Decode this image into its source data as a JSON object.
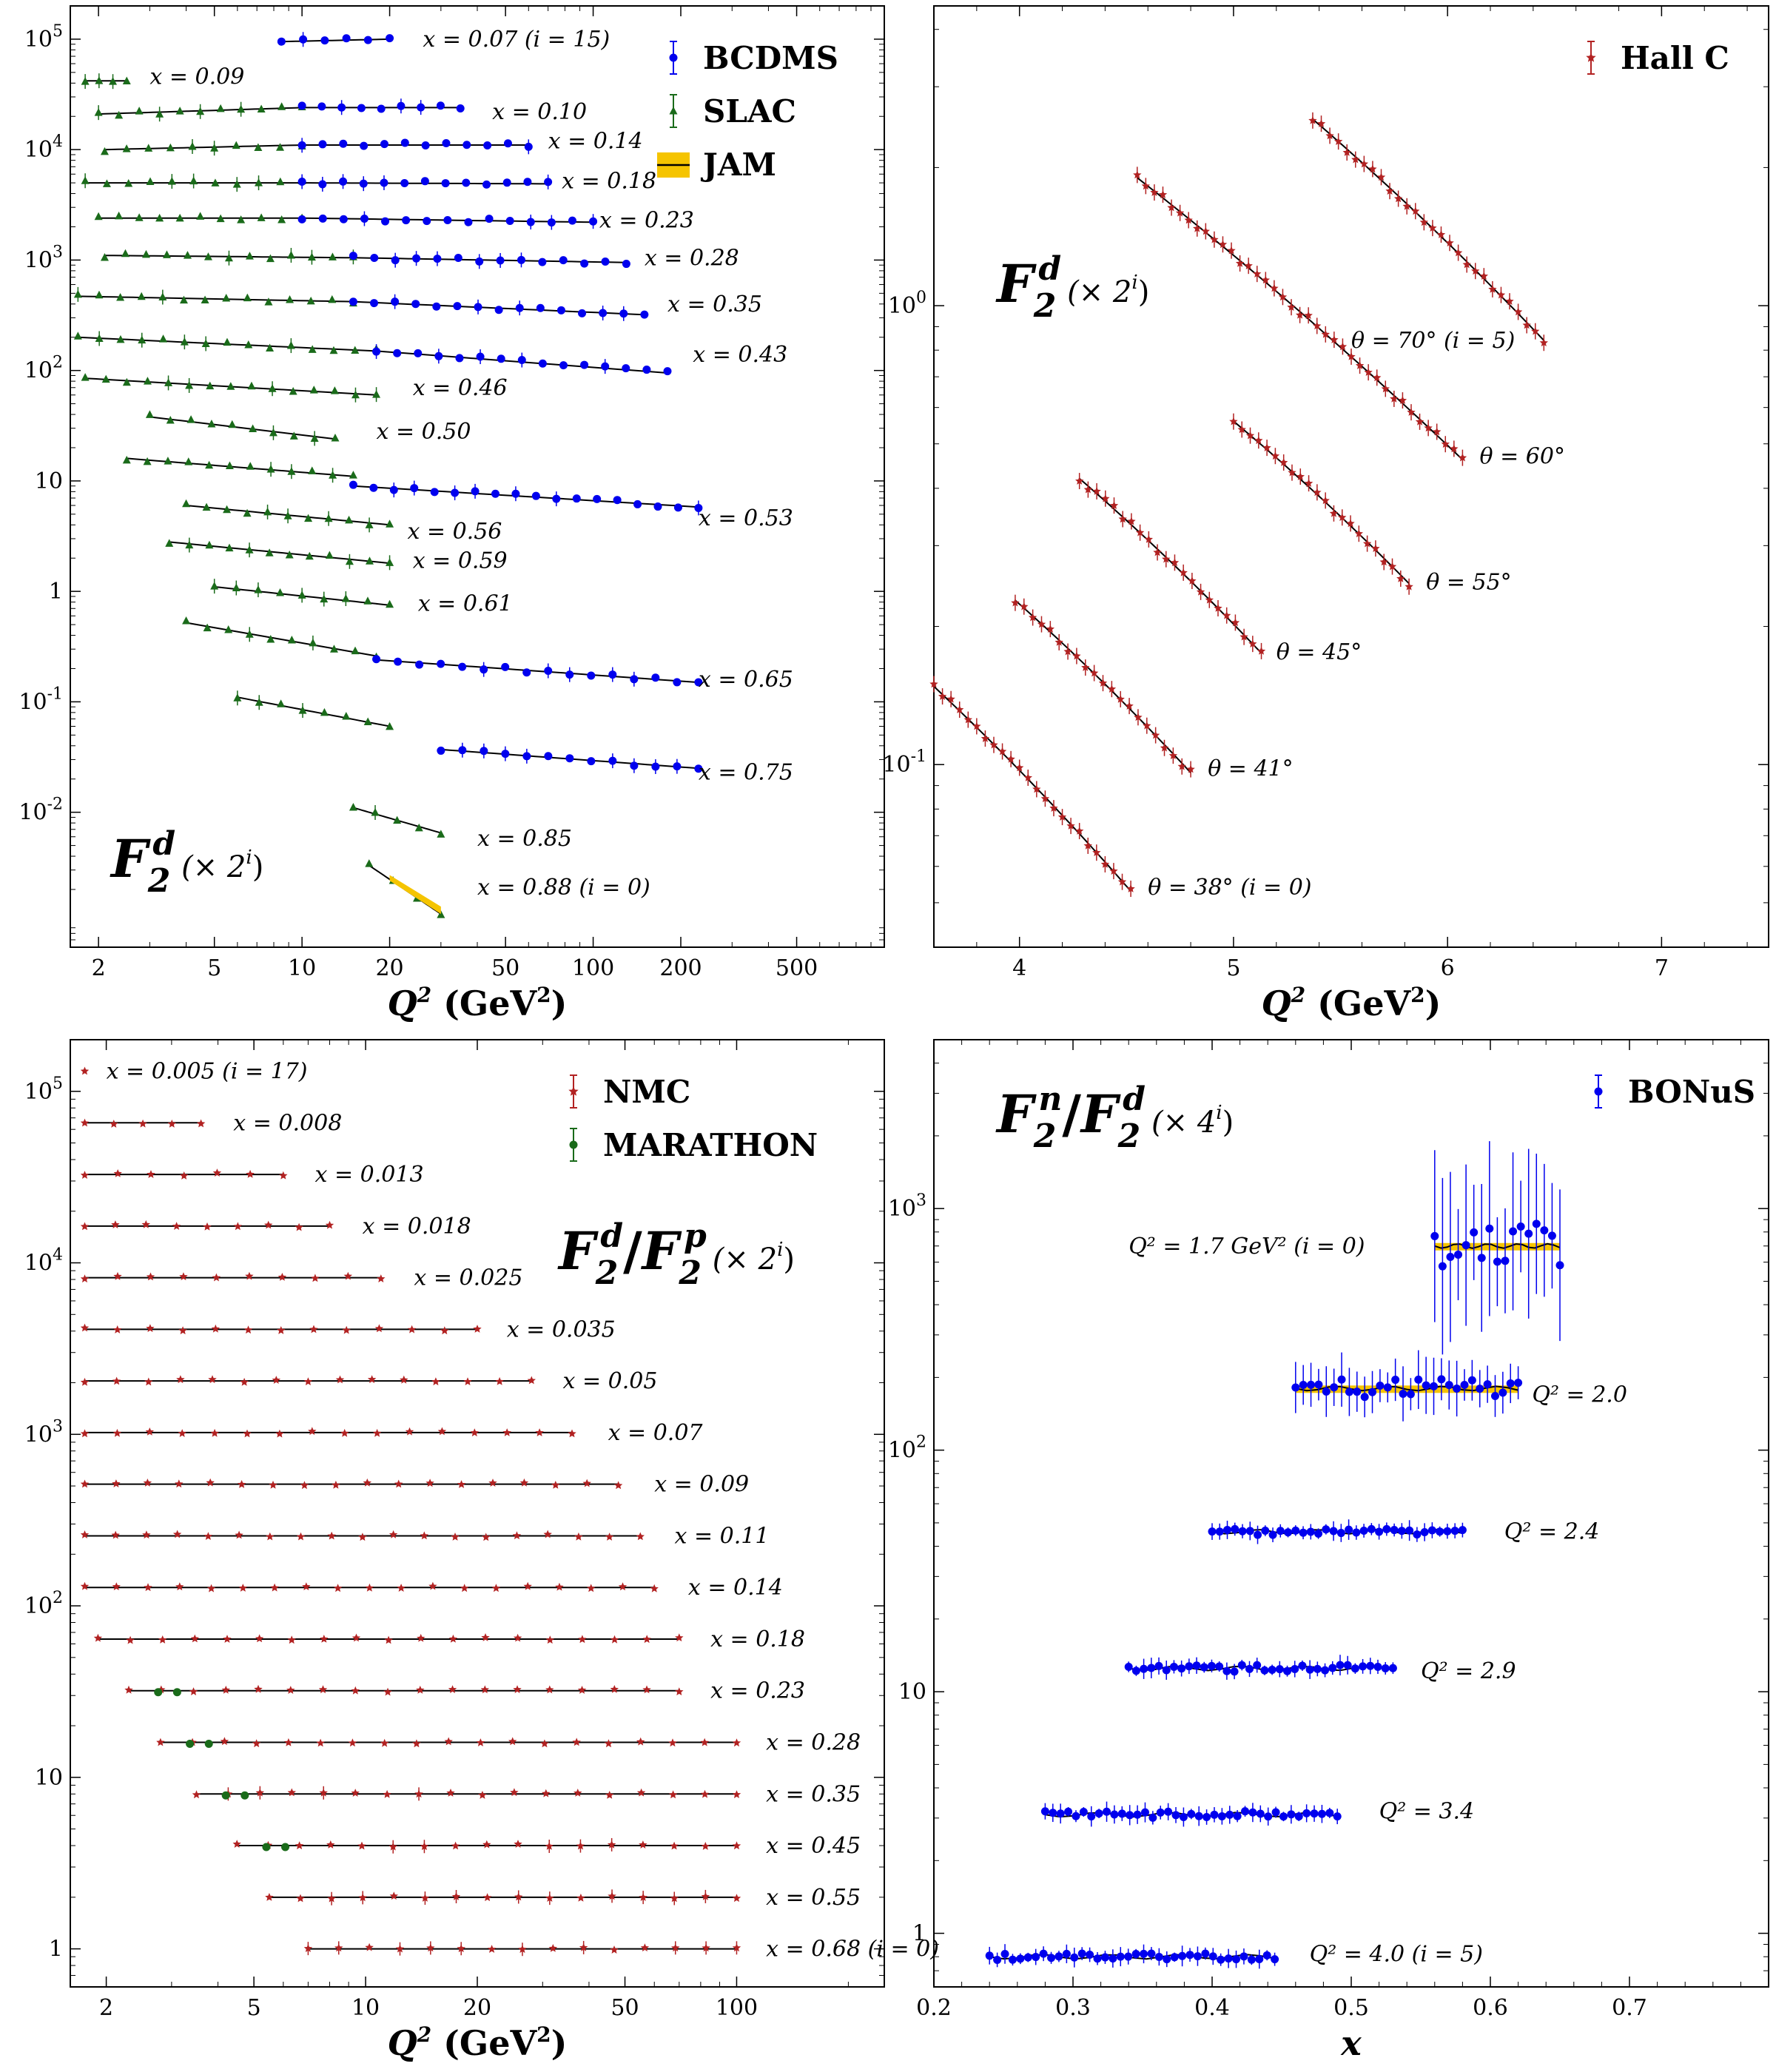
{
  "chart_data": [
    {
      "type": "scatter",
      "id": "tl",
      "title": "F2^d (×2^i)",
      "big_label": "F",
      "big_sub": "2",
      "big_sup": "d",
      "scale_note": "(× 2",
      "scale_exp": "i",
      "scale_close": ")",
      "xlabel": "Q",
      "xlabel_sup": "2",
      "xlabel_units": "(GeV",
      "xlabel_units_sup": "2",
      "xlabel_units_close": ")",
      "xscale": "log",
      "yscale": "log",
      "xlim": [
        1.6,
        1000
      ],
      "ylim": [
        0.0006,
        200000
      ],
      "xticks": [
        {
          "v": 2,
          "t": "2"
        },
        {
          "v": 5,
          "t": "5"
        },
        {
          "v": 10,
          "t": "10"
        },
        {
          "v": 20,
          "t": "20"
        },
        {
          "v": 50,
          "t": "50"
        },
        {
          "v": 100,
          "t": "100"
        },
        {
          "v": 200,
          "t": "200"
        },
        {
          "v": 500,
          "t": "500"
        }
      ],
      "yticks": [
        {
          "v": 0.01,
          "t": "10",
          "e": "-2"
        },
        {
          "v": 0.1,
          "t": "10",
          "e": "-1"
        },
        {
          "v": 1,
          "t": "1",
          "e": ""
        },
        {
          "v": 10,
          "t": "10",
          "e": ""
        },
        {
          "v": 100,
          "t": "10",
          "e": "2"
        },
        {
          "v": 1000,
          "t": "10",
          "e": "3"
        },
        {
          "v": 10000,
          "t": "10",
          "e": "4"
        },
        {
          "v": 100000,
          "t": "10",
          "e": "5"
        }
      ],
      "legend": [
        {
          "name": "BCDMS",
          "color": "#0000ee",
          "marker": "circle"
        },
        {
          "name": "SLAC",
          "color": "#1a6b1a",
          "marker": "triangle"
        },
        {
          "name": "JAM",
          "color": "#f5c400",
          "marker": "band"
        }
      ],
      "series": [
        {
          "label": "x = 0.07 (i = 15)",
          "segments": [
            {
              "set": "BCDMS",
              "x0": 8.5,
              "x1": 20,
              "y0": 95000,
              "y1": 100000
            }
          ],
          "label_x": 26,
          "label_y": 100000
        },
        {
          "label": "x = 0.09",
          "segments": [
            {
              "set": "SLAC",
              "x0": 1.8,
              "x1": 2.5,
              "y0": 42000,
              "y1": 42000
            }
          ],
          "label_x": 3,
          "label_y": 46000
        },
        {
          "label": "x = 0.10",
          "segments": [
            {
              "set": "SLAC",
              "x0": 2,
              "x1": 10,
              "y0": 21000,
              "y1": 24000
            },
            {
              "set": "BCDMS",
              "x0": 10,
              "x1": 35,
              "y0": 24000,
              "y1": 24000
            }
          ],
          "label_x": 45,
          "label_y": 22000
        },
        {
          "label": "x = 0.14",
          "segments": [
            {
              "set": "SLAC",
              "x0": 2.1,
              "x1": 10,
              "y0": 10000,
              "y1": 11000
            },
            {
              "set": "BCDMS",
              "x0": 10,
              "x1": 60,
              "y0": 11000,
              "y1": 11000
            }
          ],
          "label_x": 70,
          "label_y": 12000
        },
        {
          "label": "x = 0.18",
          "segments": [
            {
              "set": "SLAC",
              "x0": 1.8,
              "x1": 10,
              "y0": 5000,
              "y1": 5000
            },
            {
              "set": "BCDMS",
              "x0": 10,
              "x1": 70,
              "y0": 5000,
              "y1": 4900
            }
          ],
          "label_x": 78,
          "label_y": 5200
        },
        {
          "label": "x = 0.23",
          "segments": [
            {
              "set": "SLAC",
              "x0": 2,
              "x1": 10,
              "y0": 2400,
              "y1": 2400
            },
            {
              "set": "BCDMS",
              "x0": 10,
              "x1": 100,
              "y0": 2400,
              "y1": 2200
            }
          ],
          "label_x": 105,
          "label_y": 2300
        },
        {
          "label": "x = 0.28",
          "segments": [
            {
              "set": "SLAC",
              "x0": 2.1,
              "x1": 15,
              "y0": 1100,
              "y1": 1050
            },
            {
              "set": "BCDMS",
              "x0": 15,
              "x1": 130,
              "y0": 1050,
              "y1": 950
            }
          ],
          "label_x": 150,
          "label_y": 1050
        },
        {
          "label": "x = 0.35",
          "segments": [
            {
              "set": "SLAC",
              "x0": 1.7,
              "x1": 15,
              "y0": 470,
              "y1": 420
            },
            {
              "set": "BCDMS",
              "x0": 15,
              "x1": 150,
              "y0": 420,
              "y1": 320
            }
          ],
          "label_x": 180,
          "label_y": 400
        },
        {
          "label": "x = 0.43",
          "segments": [
            {
              "set": "SLAC",
              "x0": 1.7,
              "x1": 18,
              "y0": 200,
              "y1": 150
            },
            {
              "set": "BCDMS",
              "x0": 18,
              "x1": 180,
              "y0": 150,
              "y1": 95
            }
          ],
          "label_x": 220,
          "label_y": 140
        },
        {
          "label": "x = 0.46",
          "segments": [
            {
              "set": "SLAC",
              "x0": 1.8,
              "x1": 18,
              "y0": 85,
              "y1": 60
            }
          ],
          "label_x": 24,
          "label_y": 70
        },
        {
          "label": "x = 0.50",
          "segments": [
            {
              "set": "SLAC",
              "x0": 3,
              "x1": 13,
              "y0": 38,
              "y1": 24
            }
          ],
          "label_x": 18,
          "label_y": 28
        },
        {
          "label": "x = 0.53",
          "segments": [
            {
              "set": "SLAC",
              "x0": 2.5,
              "x1": 15,
              "y0": 16,
              "y1": 11
            },
            {
              "set": "BCDMS",
              "x0": 15,
              "x1": 230,
              "y0": 9,
              "y1": 5.8
            }
          ],
          "label_x": 230,
          "label_y": 4.6
        },
        {
          "label": "x = 0.56",
          "segments": [
            {
              "set": "SLAC",
              "x0": 4,
              "x1": 20,
              "y0": 6,
              "y1": 4
            }
          ],
          "label_x": 23,
          "label_y": 3.5
        },
        {
          "label": "x = 0.59",
          "segments": [
            {
              "set": "SLAC",
              "x0": 3.5,
              "x1": 20,
              "y0": 2.8,
              "y1": 1.8
            }
          ],
          "label_x": 24,
          "label_y": 1.9
        },
        {
          "label": "x = 0.61",
          "segments": [
            {
              "set": "SLAC",
              "x0": 5,
              "x1": 20,
              "y0": 1.1,
              "y1": 0.75
            }
          ],
          "label_x": 25,
          "label_y": 0.78
        },
        {
          "label": "x = 0.65",
          "segments": [
            {
              "set": "SLAC",
              "x0": 4,
              "x1": 18,
              "y0": 0.52,
              "y1": 0.26
            },
            {
              "set": "BCDMS",
              "x0": 18,
              "x1": 230,
              "y0": 0.24,
              "y1": 0.15
            }
          ],
          "label_x": 230,
          "label_y": 0.16
        },
        {
          "label": "x = 0.75",
          "segments": [
            {
              "set": "SLAC",
              "x0": 6,
              "x1": 20,
              "y0": 0.11,
              "y1": 0.06
            },
            {
              "set": "BCDMS",
              "x0": 30,
              "x1": 230,
              "y0": 0.037,
              "y1": 0.025
            }
          ],
          "label_x": 230,
          "label_y": 0.023
        },
        {
          "label": "x = 0.85",
          "segments": [
            {
              "set": "SLAC",
              "x0": 15,
              "x1": 30,
              "y0": 0.011,
              "y1": 0.0065
            }
          ],
          "label_x": 40,
          "label_y": 0.0058
        },
        {
          "label": "x = 0.88 (i = 0)",
          "segments": [
            {
              "set": "SLAC",
              "x0": 17,
              "x1": 30,
              "y0": 0.0033,
              "y1": 0.0012
            }
          ],
          "label_x": 40,
          "label_y": 0.0021
        }
      ]
    },
    {
      "type": "scatter",
      "id": "tr",
      "title": "F2^d (×2^i)",
      "big_label": "F",
      "big_sub": "2",
      "big_sup": "d",
      "scale_note": "(× 2",
      "scale_exp": "i",
      "scale_close": ")",
      "xlabel": "Q",
      "xlabel_sup": "2",
      "xlabel_units": "(GeV",
      "xlabel_units_sup": "2",
      "xlabel_units_close": ")",
      "xscale": "linear",
      "yscale": "log",
      "xlim": [
        3.6,
        7.5
      ],
      "ylim": [
        0.04,
        4.5
      ],
      "xticks": [
        {
          "v": 4,
          "t": "4"
        },
        {
          "v": 5,
          "t": "5"
        },
        {
          "v": 6,
          "t": "6"
        },
        {
          "v": 7,
          "t": "7"
        }
      ],
      "yticks": [
        {
          "v": 0.1,
          "t": "10",
          "e": "-1"
        },
        {
          "v": 1,
          "t": "10",
          "e": "0"
        }
      ],
      "legend": [
        {
          "name": "Hall C",
          "color": "#b22222",
          "marker": "star"
        }
      ],
      "series": [
        {
          "label": "θ = 38° (i = 0)",
          "x0": 3.6,
          "x1": 4.52,
          "y0": 0.148,
          "y1": 0.053,
          "label_x": 4.6,
          "label_y": 0.054
        },
        {
          "label": "θ = 41°",
          "x0": 3.98,
          "x1": 4.8,
          "y0": 0.228,
          "y1": 0.096,
          "label_x": 4.88,
          "label_y": 0.098
        },
        {
          "label": "θ = 45°",
          "x0": 4.28,
          "x1": 5.13,
          "y0": 0.42,
          "y1": 0.175,
          "label_x": 5.2,
          "label_y": 0.176
        },
        {
          "label": "θ = 55°",
          "x0": 5.0,
          "x1": 5.82,
          "y0": 0.56,
          "y1": 0.248,
          "label_x": 5.9,
          "label_y": 0.25
        },
        {
          "label": "θ = 60°",
          "x0": 4.55,
          "x1": 6.07,
          "y0": 1.9,
          "y1": 0.462,
          "label_x": 6.15,
          "label_y": 0.47
        },
        {
          "label": "θ = 70° (i = 5)",
          "x0": 5.37,
          "x1": 6.45,
          "y0": 2.55,
          "y1": 0.84,
          "label_x": 5.55,
          "label_y": 0.84
        }
      ]
    },
    {
      "type": "scatter",
      "id": "bl",
      "title": "F2^d/F2^p (×2^i)",
      "big_label": "F",
      "big_sub": "2",
      "big_sup": "d",
      "big_label2": "F",
      "big_sub2": "2",
      "big_sup2": "p",
      "scale_note": "(× 2",
      "scale_exp": "i",
      "scale_close": ")",
      "xlabel": "Q",
      "xlabel_sup": "2",
      "xlabel_units": "(GeV",
      "xlabel_units_sup": "2",
      "xlabel_units_close": ")",
      "xscale": "log",
      "yscale": "log",
      "xlim": [
        1.6,
        250
      ],
      "ylim": [
        0.6,
        200000
      ],
      "xticks": [
        {
          "v": 2,
          "t": "2"
        },
        {
          "v": 5,
          "t": "5"
        },
        {
          "v": 10,
          "t": "10"
        },
        {
          "v": 20,
          "t": "20"
        },
        {
          "v": 50,
          "t": "50"
        },
        {
          "v": 100,
          "t": "100"
        }
      ],
      "yticks": [
        {
          "v": 1,
          "t": "1",
          "e": ""
        },
        {
          "v": 10,
          "t": "10",
          "e": ""
        },
        {
          "v": 100,
          "t": "10",
          "e": "2"
        },
        {
          "v": 1000,
          "t": "10",
          "e": "3"
        },
        {
          "v": 10000,
          "t": "10",
          "e": "4"
        },
        {
          "v": 100000,
          "t": "10",
          "e": "5"
        }
      ],
      "legend": [
        {
          "name": "NMC",
          "color": "#b22222",
          "marker": "star"
        },
        {
          "name": "MARATHON",
          "color": "#1a6b1a",
          "marker": "circle"
        }
      ],
      "series": [
        {
          "label": "x = 0.005 (i = 17)",
          "y": 131072,
          "x0": 1.75,
          "x1": 1.75,
          "label_x": 2.0
        },
        {
          "label": "x = 0.008",
          "y": 65536,
          "x0": 1.75,
          "x1": 3.6,
          "label_x": 4.4
        },
        {
          "label": "x = 0.013",
          "y": 32768,
          "x0": 1.75,
          "x1": 6.0,
          "label_x": 7.3
        },
        {
          "label": "x = 0.018",
          "y": 16384,
          "x0": 1.75,
          "x1": 8.0,
          "label_x": 9.8
        },
        {
          "label": "x = 0.025",
          "y": 8192,
          "x0": 1.75,
          "x1": 11.0,
          "label_x": 13.5
        },
        {
          "label": "x = 0.035",
          "y": 4096,
          "x0": 1.75,
          "x1": 20,
          "label_x": 24
        },
        {
          "label": "x = 0.05",
          "y": 2048,
          "x0": 1.75,
          "x1": 28,
          "label_x": 34
        },
        {
          "label": "x = 0.07",
          "y": 1024,
          "x0": 1.75,
          "x1": 36,
          "label_x": 45
        },
        {
          "label": "x = 0.09",
          "y": 512,
          "x0": 1.75,
          "x1": 48,
          "label_x": 60
        },
        {
          "label": "x = 0.11",
          "y": 256,
          "x0": 1.75,
          "x1": 55,
          "label_x": 68
        },
        {
          "label": "x = 0.14",
          "y": 128,
          "x0": 1.75,
          "x1": 60,
          "label_x": 74
        },
        {
          "label": "x = 0.18",
          "y": 64,
          "x0": 1.9,
          "x1": 70,
          "label_x": 85
        },
        {
          "label": "x = 0.23",
          "y": 32,
          "x0": 2.3,
          "x1": 70,
          "label_x": 85
        },
        {
          "label": "x = 0.28",
          "y": 16,
          "x0": 2.8,
          "x1": 100,
          "label_x": 120
        },
        {
          "label": "x = 0.35",
          "y": 8,
          "x0": 3.5,
          "x1": 100,
          "label_x": 120
        },
        {
          "label": "x = 0.45",
          "y": 4,
          "x0": 4.5,
          "x1": 100,
          "label_x": 120
        },
        {
          "label": "x = 0.55",
          "y": 2,
          "x0": 5.5,
          "x1": 100,
          "label_x": 120
        },
        {
          "label": "x = 0.68 (i = 0)",
          "y": 1,
          "x0": 7,
          "x1": 100,
          "label_x": 120
        }
      ]
    },
    {
      "type": "scatter",
      "id": "br",
      "title": "F2^n/F2^d (×4^i)",
      "big_label": "F",
      "big_sub": "2",
      "big_sup": "n",
      "big_label2": "F",
      "big_sub2": "2",
      "big_sup2": "d",
      "scale_note": "(× 4",
      "scale_exp": "i",
      "scale_close": ")",
      "xlabel": "x",
      "xscale": "linear",
      "yscale": "log",
      "xlim": [
        0.2,
        0.8
      ],
      "ylim": [
        0.6,
        5000
      ],
      "xticks": [
        {
          "v": 0.2,
          "t": "0.2"
        },
        {
          "v": 0.3,
          "t": "0.3"
        },
        {
          "v": 0.4,
          "t": "0.4"
        },
        {
          "v": 0.5,
          "t": "0.5"
        },
        {
          "v": 0.6,
          "t": "0.6"
        },
        {
          "v": 0.7,
          "t": "0.7"
        }
      ],
      "yticks": [
        {
          "v": 1,
          "t": "1",
          "e": ""
        },
        {
          "v": 10,
          "t": "10",
          "e": ""
        },
        {
          "v": 100,
          "t": "10",
          "e": "2"
        },
        {
          "v": 1000,
          "t": "10",
          "e": "3"
        }
      ],
      "legend": [
        {
          "name": "BONuS",
          "color": "#0000ee",
          "marker": "circle"
        }
      ],
      "series": [
        {
          "label": "Q² = 1.7 GeV² (i = 0)",
          "y": 700,
          "x0": 0.56,
          "x1": 0.65,
          "label_x": 0.34,
          "label_y": 700,
          "label_anchor": "start"
        },
        {
          "label": "Q² = 2.0",
          "y": 180,
          "x0": 0.46,
          "x1": 0.62,
          "label_x": 0.63,
          "label_y": 170
        },
        {
          "label": "Q² = 2.4",
          "y": 46,
          "x0": 0.4,
          "x1": 0.58,
          "label_x": 0.61,
          "label_y": 46
        },
        {
          "label": "Q² = 2.9",
          "y": 12.5,
          "x0": 0.34,
          "x1": 0.53,
          "label_x": 0.55,
          "label_y": 12.2
        },
        {
          "label": "Q² = 3.4",
          "y": 3.1,
          "x0": 0.28,
          "x1": 0.49,
          "label_x": 0.52,
          "label_y": 3.2
        },
        {
          "label": "Q² = 4.0 (i = 5)",
          "y": 0.8,
          "x0": 0.24,
          "x1": 0.445,
          "label_x": 0.47,
          "label_y": 0.82
        }
      ]
    }
  ]
}
